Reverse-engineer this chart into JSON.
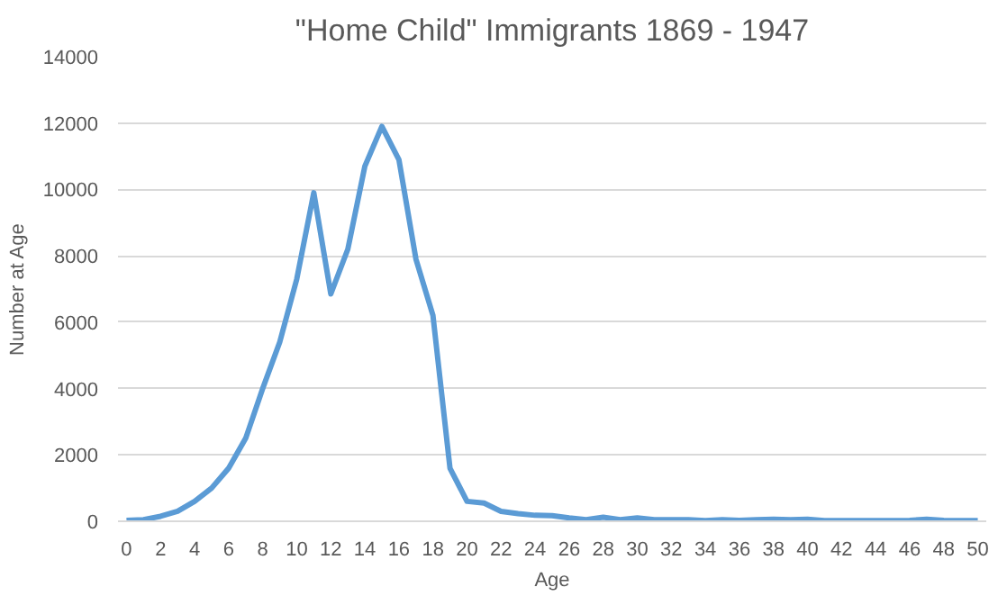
{
  "chart_data": {
    "type": "line",
    "title": "\"Home Child\" Immigrants 1869 - 1947",
    "xlabel": "Age",
    "ylabel": "Number at Age",
    "x": [
      0,
      1,
      2,
      3,
      4,
      5,
      6,
      7,
      8,
      9,
      10,
      11,
      12,
      13,
      14,
      15,
      16,
      17,
      18,
      19,
      20,
      21,
      22,
      23,
      24,
      25,
      26,
      27,
      28,
      29,
      30,
      31,
      32,
      33,
      34,
      35,
      36,
      37,
      38,
      39,
      40,
      41,
      42,
      43,
      44,
      45,
      46,
      47,
      48,
      49,
      50
    ],
    "series": [
      {
        "color": "#5b9bd5",
        "values": [
          30,
          50,
          150,
          300,
          600,
          1000,
          1600,
          2500,
          4000,
          5400,
          7300,
          9900,
          6850,
          8200,
          10700,
          11900,
          10900,
          7900,
          6200,
          1600,
          600,
          550,
          300,
          230,
          180,
          170,
          100,
          50,
          120,
          50,
          100,
          50,
          50,
          50,
          20,
          50,
          30,
          50,
          60,
          50,
          60,
          20,
          20,
          20,
          20,
          20,
          30,
          60,
          30,
          20,
          20
        ]
      }
    ],
    "xlim": [
      -0.5,
      50.5
    ],
    "xticks": [
      0,
      2,
      4,
      6,
      8,
      10,
      12,
      14,
      16,
      18,
      20,
      22,
      24,
      26,
      28,
      30,
      32,
      34,
      36,
      38,
      40,
      42,
      44,
      46,
      48,
      50
    ],
    "ylim": [
      0,
      14000
    ],
    "yticks": [
      0,
      2000,
      4000,
      6000,
      8000,
      10000,
      12000,
      14000
    ],
    "grid": "y"
  }
}
